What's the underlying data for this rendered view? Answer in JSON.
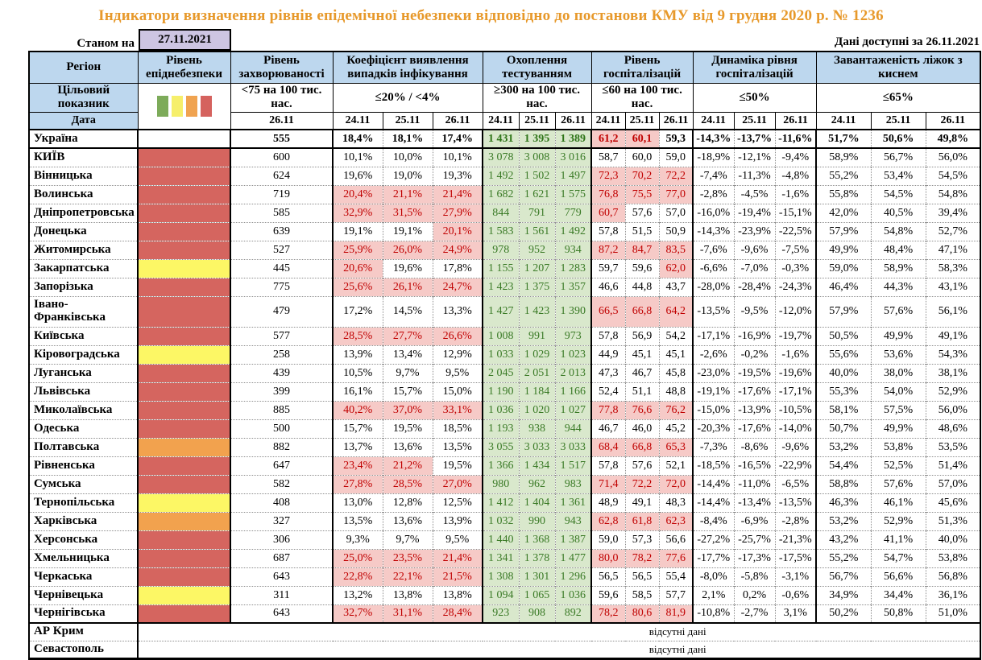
{
  "title": "Індикатори визначення рівнів епідемічної небезпеки відповідно до постанови КМУ від 9 грудня 2020 р. № 1236",
  "as_of_label": "Станом на",
  "as_of_date": "27.11.2021",
  "available_label": "Дані доступні за",
  "available_date": "26.11.2021",
  "header": {
    "region": "Регіон",
    "danger_level": "Рівень епіднебезпеки",
    "incidence": "Рівень захворюваності",
    "detection": "Коефіцієнт виявлення випадків інфікування",
    "testing": "Охоплення тестуванням",
    "hospitalization": "Рівень госпіталізацій",
    "dynamics": "Динаміка рівня госпіталізацій",
    "beds": "Завантаженість ліжок з киснем"
  },
  "target_label": "Цільовий показник",
  "date_label": "Дата",
  "targets": {
    "incidence": "<75 на 100 тис. нас.",
    "detection": "≤20% / <4%",
    "testing": "≥300 на 100 тис. нас.",
    "hospitalization": "≤60 на 100 тис. нас.",
    "dynamics": "≤50%",
    "beds": "≤65%"
  },
  "dates": {
    "incidence": "26.11",
    "d": [
      "24.11",
      "25.11",
      "26.11"
    ]
  },
  "legend_colors": [
    "#7dab5a",
    "#f6ef6b",
    "#f0a350",
    "#d5625e"
  ],
  "colors": {
    "level": {
      "none": "#ffffff",
      "red": "#d5655f",
      "yellow": "#fcf765",
      "orange": "#f2a24e"
    },
    "highlight_bg": "#f6cac7",
    "highlight_text": "#c00000",
    "testing_bg": "#d9e8cc",
    "testing_text": "#3a7a26",
    "header_bg": "#bdd7ee",
    "title_text": "#e7992b",
    "asof_box_bg": "#cdc5e2"
  },
  "no_data_text": "відсутні дані",
  "no_data_rows": [
    "АР Крим",
    "Севастополь"
  ],
  "rows": [
    {
      "name": "Україна",
      "bold": 1,
      "tall": 0,
      "level": "none",
      "incidence": "555",
      "det": [
        "18,4%",
        "18,1%",
        "17,4%"
      ],
      "det_hl": [
        0,
        0,
        0
      ],
      "test": [
        "1 431",
        "1 395",
        "1 389"
      ],
      "hosp": [
        "61,2",
        "60,1",
        "59,3"
      ],
      "hosp_hl": [
        1,
        1,
        0
      ],
      "dyn": [
        "-14,3%",
        "-13,7%",
        "-11,6%"
      ],
      "beds": [
        "51,7%",
        "50,6%",
        "49,8%"
      ]
    },
    {
      "name": "КИЇВ",
      "bold": 0,
      "tall": 0,
      "level": "red",
      "incidence": "600",
      "det": [
        "10,1%",
        "10,0%",
        "10,1%"
      ],
      "det_hl": [
        0,
        0,
        0
      ],
      "test": [
        "3 078",
        "3 008",
        "3 016"
      ],
      "hosp": [
        "58,7",
        "60,0",
        "59,0"
      ],
      "hosp_hl": [
        0,
        0,
        0
      ],
      "dyn": [
        "-18,9%",
        "-12,1%",
        "-9,4%"
      ],
      "beds": [
        "58,9%",
        "56,7%",
        "56,0%"
      ]
    },
    {
      "name": "Вінницька",
      "bold": 0,
      "tall": 0,
      "level": "red",
      "incidence": "624",
      "det": [
        "19,6%",
        "19,0%",
        "19,3%"
      ],
      "det_hl": [
        0,
        0,
        0
      ],
      "test": [
        "1 492",
        "1 502",
        "1 497"
      ],
      "hosp": [
        "72,3",
        "70,2",
        "72,2"
      ],
      "hosp_hl": [
        1,
        1,
        1
      ],
      "dyn": [
        "-7,4%",
        "-11,3%",
        "-4,8%"
      ],
      "beds": [
        "55,2%",
        "53,4%",
        "54,5%"
      ]
    },
    {
      "name": "Волинська",
      "bold": 0,
      "tall": 0,
      "level": "red",
      "incidence": "719",
      "det": [
        "20,4%",
        "21,1%",
        "21,4%"
      ],
      "det_hl": [
        1,
        1,
        1
      ],
      "test": [
        "1 682",
        "1 621",
        "1 575"
      ],
      "hosp": [
        "76,8",
        "75,5",
        "77,0"
      ],
      "hosp_hl": [
        1,
        1,
        1
      ],
      "dyn": [
        "-2,8%",
        "-4,5%",
        "-1,6%"
      ],
      "beds": [
        "55,8%",
        "54,5%",
        "54,8%"
      ]
    },
    {
      "name": "Дніпропетровська",
      "bold": 0,
      "tall": 0,
      "level": "red",
      "incidence": "585",
      "det": [
        "32,9%",
        "31,5%",
        "27,9%"
      ],
      "det_hl": [
        1,
        1,
        1
      ],
      "test": [
        "844",
        "791",
        "779"
      ],
      "hosp": [
        "60,7",
        "57,6",
        "57,0"
      ],
      "hosp_hl": [
        1,
        0,
        0
      ],
      "dyn": [
        "-16,0%",
        "-19,4%",
        "-15,1%"
      ],
      "beds": [
        "42,0%",
        "40,5%",
        "39,4%"
      ]
    },
    {
      "name": "Донецька",
      "bold": 0,
      "tall": 0,
      "level": "red",
      "incidence": "639",
      "det": [
        "19,1%",
        "19,1%",
        "20,1%"
      ],
      "det_hl": [
        0,
        0,
        1
      ],
      "test": [
        "1 583",
        "1 561",
        "1 492"
      ],
      "hosp": [
        "57,8",
        "51,5",
        "50,9"
      ],
      "hosp_hl": [
        0,
        0,
        0
      ],
      "dyn": [
        "-14,3%",
        "-23,9%",
        "-22,5%"
      ],
      "beds": [
        "57,9%",
        "54,8%",
        "52,7%"
      ]
    },
    {
      "name": "Житомирська",
      "bold": 0,
      "tall": 0,
      "level": "red",
      "incidence": "527",
      "det": [
        "25,9%",
        "26,0%",
        "24,9%"
      ],
      "det_hl": [
        1,
        1,
        1
      ],
      "test": [
        "978",
        "952",
        "934"
      ],
      "hosp": [
        "87,2",
        "84,7",
        "83,5"
      ],
      "hosp_hl": [
        1,
        1,
        1
      ],
      "dyn": [
        "-7,6%",
        "-9,6%",
        "-7,5%"
      ],
      "beds": [
        "49,9%",
        "48,4%",
        "47,1%"
      ]
    },
    {
      "name": "Закарпатська",
      "bold": 0,
      "tall": 0,
      "level": "yellow",
      "incidence": "445",
      "det": [
        "20,6%",
        "19,6%",
        "17,8%"
      ],
      "det_hl": [
        1,
        0,
        0
      ],
      "test": [
        "1 155",
        "1 207",
        "1 283"
      ],
      "hosp": [
        "59,7",
        "59,6",
        "62,0"
      ],
      "hosp_hl": [
        0,
        0,
        1
      ],
      "dyn": [
        "-6,6%",
        "-7,0%",
        "-0,3%"
      ],
      "beds": [
        "59,0%",
        "58,9%",
        "58,3%"
      ]
    },
    {
      "name": "Запорізька",
      "bold": 0,
      "tall": 0,
      "level": "red",
      "incidence": "775",
      "det": [
        "25,6%",
        "26,1%",
        "24,7%"
      ],
      "det_hl": [
        1,
        1,
        1
      ],
      "test": [
        "1 423",
        "1 375",
        "1 357"
      ],
      "hosp": [
        "46,6",
        "44,8",
        "43,7"
      ],
      "hosp_hl": [
        0,
        0,
        0
      ],
      "dyn": [
        "-28,0%",
        "-28,4%",
        "-24,3%"
      ],
      "beds": [
        "46,4%",
        "44,3%",
        "43,1%"
      ]
    },
    {
      "name": "Івано-\nФранківська",
      "bold": 0,
      "tall": 1,
      "level": "red",
      "incidence": "479",
      "det": [
        "17,2%",
        "14,5%",
        "13,3%"
      ],
      "det_hl": [
        0,
        0,
        0
      ],
      "test": [
        "1 427",
        "1 423",
        "1 390"
      ],
      "hosp": [
        "66,5",
        "66,8",
        "64,2"
      ],
      "hosp_hl": [
        1,
        1,
        1
      ],
      "dyn": [
        "-13,5%",
        "-9,5%",
        "-12,0%"
      ],
      "beds": [
        "57,9%",
        "57,6%",
        "56,1%"
      ]
    },
    {
      "name": "Київська",
      "bold": 0,
      "tall": 0,
      "level": "red",
      "incidence": "577",
      "det": [
        "28,5%",
        "27,7%",
        "26,6%"
      ],
      "det_hl": [
        1,
        1,
        1
      ],
      "test": [
        "1 008",
        "991",
        "973"
      ],
      "hosp": [
        "57,8",
        "56,9",
        "54,2"
      ],
      "hosp_hl": [
        0,
        0,
        0
      ],
      "dyn": [
        "-17,1%",
        "-16,9%",
        "-19,7%"
      ],
      "beds": [
        "50,5%",
        "49,9%",
        "49,1%"
      ]
    },
    {
      "name": "Кіровоградська",
      "bold": 0,
      "tall": 0,
      "level": "yellow",
      "incidence": "258",
      "det": [
        "13,9%",
        "13,4%",
        "12,9%"
      ],
      "det_hl": [
        0,
        0,
        0
      ],
      "test": [
        "1 033",
        "1 029",
        "1 023"
      ],
      "hosp": [
        "44,9",
        "45,1",
        "45,1"
      ],
      "hosp_hl": [
        0,
        0,
        0
      ],
      "dyn": [
        "-2,6%",
        "-0,2%",
        "-1,6%"
      ],
      "beds": [
        "55,6%",
        "53,6%",
        "54,3%"
      ]
    },
    {
      "name": "Луганська",
      "bold": 0,
      "tall": 0,
      "level": "red",
      "incidence": "439",
      "det": [
        "10,5%",
        "9,7%",
        "9,5%"
      ],
      "det_hl": [
        0,
        0,
        0
      ],
      "test": [
        "2 045",
        "2 051",
        "2 013"
      ],
      "hosp": [
        "47,3",
        "46,7",
        "45,8"
      ],
      "hosp_hl": [
        0,
        0,
        0
      ],
      "dyn": [
        "-23,0%",
        "-19,5%",
        "-19,6%"
      ],
      "beds": [
        "40,0%",
        "38,0%",
        "38,1%"
      ]
    },
    {
      "name": "Львівська",
      "bold": 0,
      "tall": 0,
      "level": "red",
      "incidence": "399",
      "det": [
        "16,1%",
        "15,7%",
        "15,0%"
      ],
      "det_hl": [
        0,
        0,
        0
      ],
      "test": [
        "1 190",
        "1 184",
        "1 166"
      ],
      "hosp": [
        "52,4",
        "51,1",
        "48,8"
      ],
      "hosp_hl": [
        0,
        0,
        0
      ],
      "dyn": [
        "-19,1%",
        "-17,6%",
        "-17,1%"
      ],
      "beds": [
        "55,3%",
        "54,0%",
        "52,9%"
      ]
    },
    {
      "name": "Миколаївська",
      "bold": 0,
      "tall": 0,
      "level": "red",
      "incidence": "885",
      "det": [
        "40,2%",
        "37,0%",
        "33,1%"
      ],
      "det_hl": [
        1,
        1,
        1
      ],
      "test": [
        "1 036",
        "1 020",
        "1 027"
      ],
      "hosp": [
        "77,8",
        "76,6",
        "76,2"
      ],
      "hosp_hl": [
        1,
        1,
        1
      ],
      "dyn": [
        "-15,0%",
        "-13,9%",
        "-10,5%"
      ],
      "beds": [
        "58,1%",
        "57,5%",
        "56,0%"
      ]
    },
    {
      "name": "Одеська",
      "bold": 0,
      "tall": 0,
      "level": "red",
      "incidence": "500",
      "det": [
        "15,7%",
        "19,5%",
        "18,5%"
      ],
      "det_hl": [
        0,
        0,
        0
      ],
      "test": [
        "1 193",
        "938",
        "944"
      ],
      "hosp": [
        "46,7",
        "46,0",
        "45,2"
      ],
      "hosp_hl": [
        0,
        0,
        0
      ],
      "dyn": [
        "-20,3%",
        "-17,6%",
        "-14,0%"
      ],
      "beds": [
        "50,7%",
        "49,9%",
        "48,6%"
      ]
    },
    {
      "name": "Полтавська",
      "bold": 0,
      "tall": 0,
      "level": "orange",
      "incidence": "882",
      "det": [
        "13,7%",
        "13,6%",
        "13,5%"
      ],
      "det_hl": [
        0,
        0,
        0
      ],
      "test": [
        "3 055",
        "3 033",
        "3 033"
      ],
      "hosp": [
        "68,4",
        "66,8",
        "65,3"
      ],
      "hosp_hl": [
        1,
        1,
        1
      ],
      "dyn": [
        "-7,3%",
        "-8,6%",
        "-9,6%"
      ],
      "beds": [
        "53,2%",
        "53,8%",
        "53,5%"
      ]
    },
    {
      "name": "Рівненська",
      "bold": 0,
      "tall": 0,
      "level": "red",
      "incidence": "647",
      "det": [
        "23,4%",
        "21,2%",
        "19,5%"
      ],
      "det_hl": [
        1,
        1,
        0
      ],
      "test": [
        "1 366",
        "1 434",
        "1 517"
      ],
      "hosp": [
        "57,8",
        "57,6",
        "52,1"
      ],
      "hosp_hl": [
        0,
        0,
        0
      ],
      "dyn": [
        "-18,5%",
        "-16,5%",
        "-22,9%"
      ],
      "beds": [
        "54,4%",
        "52,5%",
        "51,4%"
      ]
    },
    {
      "name": "Сумська",
      "bold": 0,
      "tall": 0,
      "level": "red",
      "incidence": "582",
      "det": [
        "27,8%",
        "28,5%",
        "27,0%"
      ],
      "det_hl": [
        1,
        1,
        1
      ],
      "test": [
        "980",
        "962",
        "983"
      ],
      "hosp": [
        "71,4",
        "72,2",
        "72,0"
      ],
      "hosp_hl": [
        1,
        1,
        1
      ],
      "dyn": [
        "-14,4%",
        "-11,0%",
        "-6,5%"
      ],
      "beds": [
        "58,8%",
        "57,6%",
        "57,0%"
      ]
    },
    {
      "name": "Тернопільська",
      "bold": 0,
      "tall": 0,
      "level": "yellow",
      "incidence": "408",
      "det": [
        "13,0%",
        "12,8%",
        "12,5%"
      ],
      "det_hl": [
        0,
        0,
        0
      ],
      "test": [
        "1 412",
        "1 404",
        "1 361"
      ],
      "hosp": [
        "48,9",
        "49,1",
        "48,3"
      ],
      "hosp_hl": [
        0,
        0,
        0
      ],
      "dyn": [
        "-14,4%",
        "-13,4%",
        "-13,5%"
      ],
      "beds": [
        "46,3%",
        "46,1%",
        "45,6%"
      ]
    },
    {
      "name": "Харківська",
      "bold": 0,
      "tall": 0,
      "level": "orange",
      "incidence": "327",
      "det": [
        "13,5%",
        "13,6%",
        "13,9%"
      ],
      "det_hl": [
        0,
        0,
        0
      ],
      "test": [
        "1 032",
        "990",
        "943"
      ],
      "hosp": [
        "62,8",
        "61,8",
        "62,3"
      ],
      "hosp_hl": [
        1,
        1,
        1
      ],
      "dyn": [
        "-8,4%",
        "-6,9%",
        "-2,8%"
      ],
      "beds": [
        "53,2%",
        "52,9%",
        "51,3%"
      ]
    },
    {
      "name": "Херсонська",
      "bold": 0,
      "tall": 0,
      "level": "red",
      "incidence": "306",
      "det": [
        "9,3%",
        "9,7%",
        "9,5%"
      ],
      "det_hl": [
        0,
        0,
        0
      ],
      "test": [
        "1 440",
        "1 368",
        "1 387"
      ],
      "hosp": [
        "59,0",
        "57,3",
        "56,6"
      ],
      "hosp_hl": [
        0,
        0,
        0
      ],
      "dyn": [
        "-27,2%",
        "-25,7%",
        "-21,3%"
      ],
      "beds": [
        "43,2%",
        "41,1%",
        "40,0%"
      ]
    },
    {
      "name": "Хмельницька",
      "bold": 0,
      "tall": 0,
      "level": "red",
      "incidence": "687",
      "det": [
        "25,0%",
        "23,5%",
        "21,4%"
      ],
      "det_hl": [
        1,
        1,
        1
      ],
      "test": [
        "1 341",
        "1 378",
        "1 477"
      ],
      "hosp": [
        "80,0",
        "78,2",
        "77,6"
      ],
      "hosp_hl": [
        1,
        1,
        1
      ],
      "dyn": [
        "-17,7%",
        "-17,3%",
        "-17,5%"
      ],
      "beds": [
        "55,2%",
        "54,7%",
        "53,8%"
      ]
    },
    {
      "name": "Черкаська",
      "bold": 0,
      "tall": 0,
      "level": "red",
      "incidence": "643",
      "det": [
        "22,8%",
        "22,1%",
        "21,5%"
      ],
      "det_hl": [
        1,
        1,
        1
      ],
      "test": [
        "1 308",
        "1 301",
        "1 296"
      ],
      "hosp": [
        "56,5",
        "56,5",
        "55,4"
      ],
      "hosp_hl": [
        0,
        0,
        0
      ],
      "dyn": [
        "-8,0%",
        "-5,8%",
        "-3,1%"
      ],
      "beds": [
        "56,7%",
        "56,6%",
        "56,8%"
      ]
    },
    {
      "name": "Чернівецька",
      "bold": 0,
      "tall": 0,
      "level": "yellow",
      "incidence": "311",
      "det": [
        "13,2%",
        "13,8%",
        "13,8%"
      ],
      "det_hl": [
        0,
        0,
        0
      ],
      "test": [
        "1 094",
        "1 065",
        "1 036"
      ],
      "hosp": [
        "59,6",
        "58,5",
        "57,7"
      ],
      "hosp_hl": [
        0,
        0,
        0
      ],
      "dyn": [
        "2,1%",
        "0,2%",
        "-0,6%"
      ],
      "beds": [
        "34,9%",
        "34,4%",
        "36,1%"
      ]
    },
    {
      "name": "Чернігівська",
      "bold": 0,
      "tall": 0,
      "level": "red",
      "incidence": "643",
      "det": [
        "32,7%",
        "31,1%",
        "28,4%"
      ],
      "det_hl": [
        1,
        1,
        1
      ],
      "test": [
        "923",
        "908",
        "892"
      ],
      "hosp": [
        "78,2",
        "80,6",
        "81,9"
      ],
      "hosp_hl": [
        1,
        1,
        1
      ],
      "dyn": [
        "-10,8%",
        "-2,7%",
        "3,1%"
      ],
      "beds": [
        "50,2%",
        "50,8%",
        "51,0%"
      ]
    }
  ]
}
